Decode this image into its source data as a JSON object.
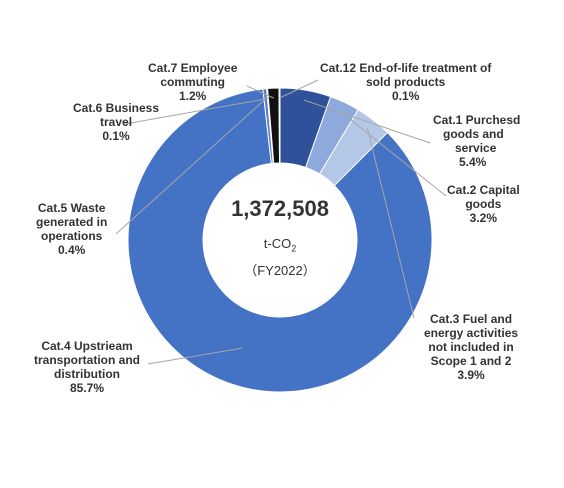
{
  "chart_data": {
    "type": "pie",
    "center": {
      "total": "1,372,508",
      "unit_main": "t-CO",
      "unit_sub": "2",
      "year": "（FY2022）"
    },
    "slices": [
      {
        "name_lines": [
          "Cat.1 Purchesd",
          "goods and",
          "service"
        ],
        "value": 5.4,
        "pct": "5.4%",
        "color": "#2E5199"
      },
      {
        "name_lines": [
          "Cat.2 Capital",
          "goods"
        ],
        "value": 3.2,
        "pct": "3.2%",
        "color": "#8EA9DB"
      },
      {
        "name_lines": [
          "Cat.3 Fuel and",
          "energy activities",
          "not included in",
          "Scope 1 and 2"
        ],
        "value": 3.9,
        "pct": "3.9%",
        "color": "#B4C7E7"
      },
      {
        "name_lines": [
          "Cat.4 Upstrieam",
          "transportation and",
          "distribution"
        ],
        "value": 85.7,
        "pct": "85.7%",
        "color": "#4472C4"
      },
      {
        "name_lines": [
          "Cat.5 Waste",
          "generated in",
          "operations"
        ],
        "value": 0.4,
        "pct": "0.4%",
        "color": "#5B7FCC"
      },
      {
        "name_lines": [
          "Cat.6 Business",
          "travel"
        ],
        "value": 0.1,
        "pct": "0.1%",
        "color": "#1F3864"
      },
      {
        "name_lines": [
          "Cat.7 Employee",
          "commuting"
        ],
        "value": 1.2,
        "pct": "1.2%",
        "color": "#111111"
      },
      {
        "name_lines": [
          "Cat.12 End-of-life treatment of",
          "sold products"
        ],
        "value": 0.1,
        "pct": "0.1%",
        "color": "#9DB3DE"
      }
    ]
  }
}
